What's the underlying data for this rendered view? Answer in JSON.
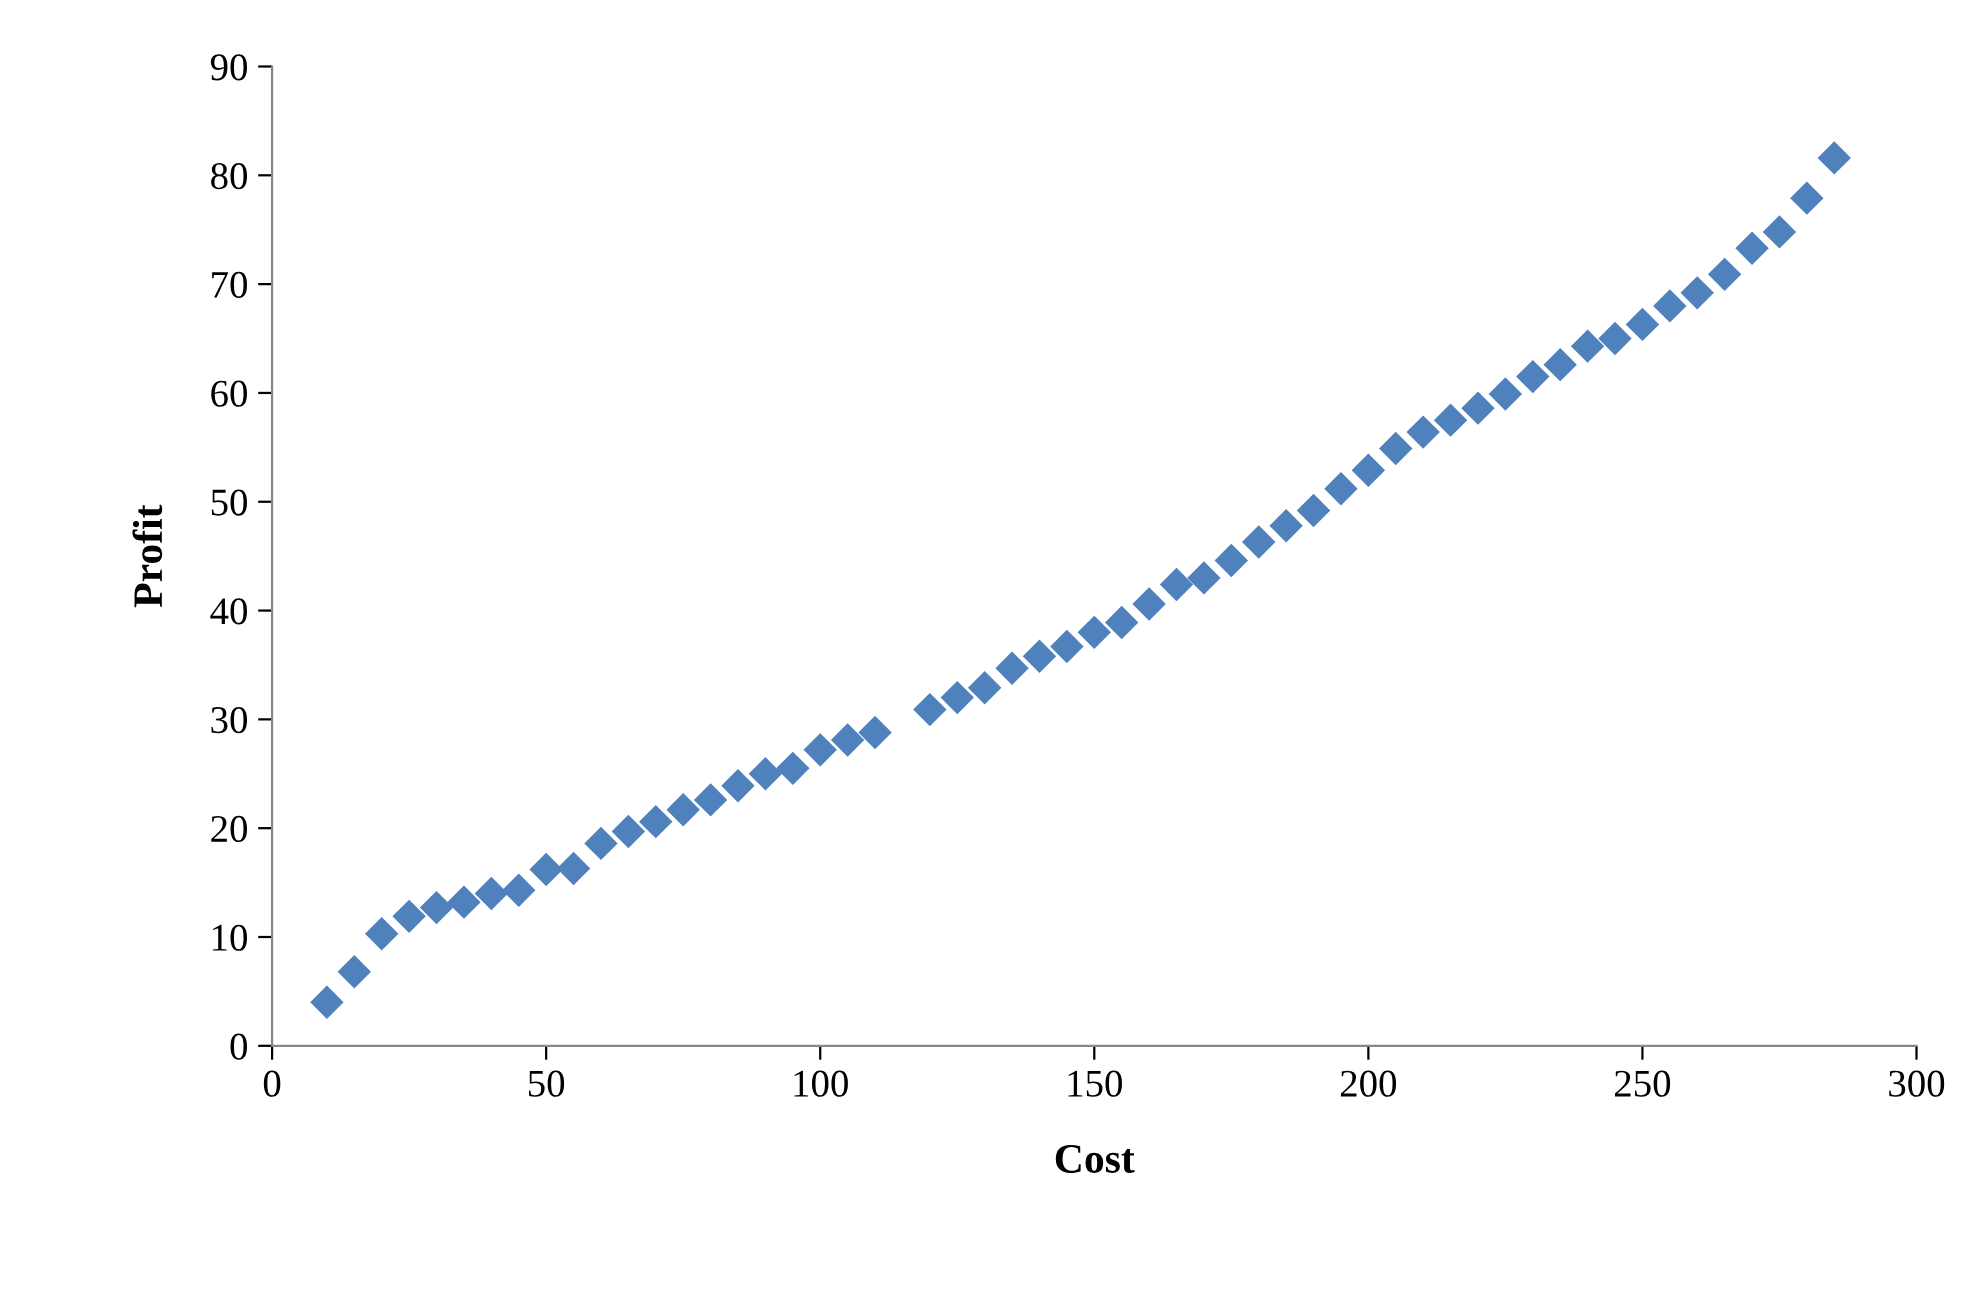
{
  "chart_data": {
    "type": "scatter",
    "xlabel": "Cost",
    "ylabel": "Profit",
    "marker": "diamond",
    "grid": false,
    "legend": false,
    "xlim": [
      0,
      300
    ],
    "xticks": [
      0,
      50,
      100,
      150,
      200,
      250,
      300
    ],
    "ylim": [
      0,
      90
    ],
    "yticks": [
      0,
      10,
      20,
      30,
      40,
      50,
      60,
      70,
      80,
      90
    ],
    "series": [
      {
        "color": "#4f81bd",
        "x": [
          10,
          15,
          20,
          25,
          30,
          35,
          40,
          45,
          50,
          55,
          60,
          65,
          70,
          75,
          80,
          85,
          90,
          95,
          100,
          105,
          110,
          120,
          125,
          130,
          135,
          140,
          145,
          150,
          155,
          160,
          165,
          170,
          175,
          180,
          185,
          190,
          195,
          200,
          205,
          210,
          215,
          220,
          225,
          230,
          235,
          240,
          245,
          250,
          255,
          260,
          265,
          270,
          275,
          280,
          285
        ],
        "values": [
          4.0,
          6.8,
          10.3,
          11.9,
          12.7,
          13.2,
          14.0,
          14.3,
          16.2,
          16.3,
          18.6,
          19.7,
          20.6,
          21.7,
          22.6,
          23.9,
          25.0,
          25.5,
          27.2,
          28.1,
          28.8,
          30.9,
          32.0,
          32.9,
          34.7,
          35.8,
          36.7,
          38.0,
          38.9,
          40.6,
          42.4,
          43.0,
          44.6,
          46.3,
          47.8,
          49.2,
          51.2,
          52.9,
          54.9,
          56.4,
          57.5,
          58.6,
          59.9,
          61.5,
          62.6,
          64.3,
          65.0,
          66.3,
          68.0,
          69.2,
          70.9,
          73.3,
          74.8,
          77.9,
          81.6
        ]
      }
    ]
  }
}
